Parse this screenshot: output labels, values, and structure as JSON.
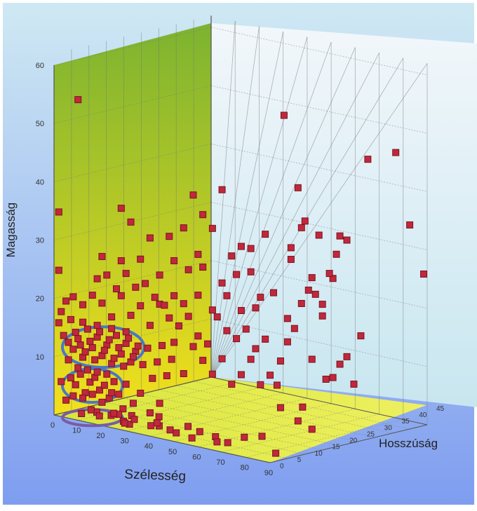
{
  "chart_data": {
    "type": "scatter",
    "projection": "3d",
    "title": "",
    "xlabel": "Szélesség",
    "ylabel": "Hosszúság",
    "zlabel": "Magasság",
    "x_ticks": [
      "0",
      "10",
      "20",
      "30",
      "40",
      "50",
      "60",
      "70",
      "80",
      "90"
    ],
    "y_ticks": [
      "0",
      "5",
      "10",
      "15",
      "20",
      "25",
      "30",
      "35",
      "40",
      "45"
    ],
    "z_ticks": [
      "10",
      "20",
      "30",
      "40",
      "50",
      "60"
    ],
    "xlim": [
      0,
      90
    ],
    "ylim": [
      0,
      45
    ],
    "zlim": [
      0,
      62
    ],
    "grid": true,
    "colors": {
      "marker": "#c0283c",
      "marker_edge": "#7a1420",
      "left_wall_top": "#7cb330",
      "left_wall_bottom": "#f3e01c",
      "floor": "#d8e63a",
      "back_wall_top": "#f2f7fb",
      "back_wall_bottom": "#c8e6f0",
      "background_top": "#cfe9f3",
      "background_bottom": "#7f9df0",
      "cluster_blue": "#4a77c6",
      "cluster_purple": "#7a5aa8"
    },
    "clusters": [
      {
        "x": [
          7,
          34
        ],
        "z": [
          10,
          17
        ],
        "color": "blue"
      },
      {
        "x": [
          7,
          25
        ],
        "z": [
          4,
          9
        ],
        "color": "blue"
      },
      {
        "x": [
          7,
          25
        ],
        "z": [
          0,
          2
        ],
        "color": "purple"
      }
    ],
    "points": [
      [
        24,
        2,
        2
      ],
      [
        30,
        1,
        1
      ],
      [
        14,
        1,
        2
      ],
      [
        10,
        1,
        1
      ],
      [
        18,
        4,
        1
      ],
      [
        28,
        3,
        2
      ],
      [
        40,
        2,
        2
      ],
      [
        35,
        6,
        2
      ],
      [
        50,
        4,
        2
      ],
      [
        56,
        1,
        1
      ],
      [
        65,
        2,
        1
      ],
      [
        72,
        5,
        2
      ],
      [
        88,
        3,
        1
      ],
      [
        44,
        3,
        1
      ],
      [
        12,
        4,
        1
      ],
      [
        20,
        6,
        2
      ],
      [
        26,
        2,
        1
      ],
      [
        32,
        1,
        2
      ],
      [
        36,
        3,
        1
      ],
      [
        22,
        2,
        2
      ],
      [
        16,
        2,
        1
      ],
      [
        48,
        2,
        1
      ],
      [
        60,
        5,
        1
      ],
      [
        28,
        1,
        1
      ],
      [
        38,
        4,
        1
      ],
      [
        52,
        6,
        1
      ],
      [
        75,
        8,
        2
      ],
      [
        68,
        3,
        1
      ],
      [
        7,
        0,
        7
      ],
      [
        9,
        0,
        6
      ],
      [
        11,
        0,
        8
      ],
      [
        13,
        0,
        5
      ],
      [
        15,
        0,
        7
      ],
      [
        17,
        0,
        8
      ],
      [
        19,
        0,
        6
      ],
      [
        21,
        0,
        7
      ],
      [
        23,
        0,
        5
      ],
      [
        25,
        0,
        8
      ],
      [
        8,
        0,
        4
      ],
      [
        12,
        0,
        4
      ],
      [
        16,
        0,
        5
      ],
      [
        20,
        0,
        4
      ],
      [
        24,
        0,
        6
      ],
      [
        10,
        0,
        9
      ],
      [
        14,
        0,
        9
      ],
      [
        18,
        0,
        9
      ],
      [
        22,
        0,
        9
      ],
      [
        27,
        0,
        6
      ],
      [
        30,
        0,
        8
      ],
      [
        33,
        0,
        5
      ],
      [
        36,
        0,
        7
      ],
      [
        40,
        0,
        4
      ],
      [
        44,
        0,
        6
      ],
      [
        3,
        0,
        6
      ],
      [
        5,
        0,
        3
      ],
      [
        8,
        0,
        12
      ],
      [
        10,
        0,
        14
      ],
      [
        12,
        0,
        11
      ],
      [
        14,
        0,
        16
      ],
      [
        16,
        0,
        13
      ],
      [
        18,
        0,
        15
      ],
      [
        20,
        0,
        12
      ],
      [
        22,
        0,
        14
      ],
      [
        24,
        0,
        11
      ],
      [
        26,
        0,
        16
      ],
      [
        28,
        0,
        13
      ],
      [
        30,
        0,
        15
      ],
      [
        32,
        0,
        12
      ],
      [
        34,
        0,
        14
      ],
      [
        9,
        0,
        15
      ],
      [
        11,
        0,
        13
      ],
      [
        13,
        0,
        12
      ],
      [
        15,
        0,
        14
      ],
      [
        17,
        0,
        11
      ],
      [
        19,
        0,
        16
      ],
      [
        21,
        0,
        13
      ],
      [
        23,
        0,
        15
      ],
      [
        25,
        0,
        12
      ],
      [
        27,
        0,
        14
      ],
      [
        29,
        0,
        11
      ],
      [
        31,
        0,
        16
      ],
      [
        33,
        0,
        13
      ],
      [
        35,
        0,
        15
      ],
      [
        12,
        0,
        17
      ],
      [
        18,
        0,
        17
      ],
      [
        24,
        0,
        17
      ],
      [
        30,
        0,
        17
      ],
      [
        6,
        0,
        10
      ],
      [
        37,
        0,
        12
      ],
      [
        39,
        0,
        15
      ],
      [
        41,
        0,
        10
      ],
      [
        43,
        0,
        13
      ],
      [
        45,
        0,
        16
      ],
      [
        47,
        0,
        11
      ],
      [
        49,
        0,
        14
      ],
      [
        3,
        0,
        18
      ],
      [
        5,
        0,
        20
      ],
      [
        7,
        0,
        17
      ],
      [
        4,
        0,
        14
      ],
      [
        2,
        0,
        16
      ],
      [
        6,
        0,
        13
      ],
      [
        8,
        0,
        21
      ],
      [
        12,
        0,
        20
      ],
      [
        16,
        0,
        22
      ],
      [
        20,
        0,
        21
      ],
      [
        24,
        0,
        19
      ],
      [
        28,
        0,
        23
      ],
      [
        32,
        0,
        20
      ],
      [
        36,
        0,
        22
      ],
      [
        40,
        0,
        19
      ],
      [
        44,
        0,
        23
      ],
      [
        48,
        0,
        21
      ],
      [
        52,
        0,
        20
      ],
      [
        56,
        0,
        22
      ],
      [
        60,
        0,
        19
      ],
      [
        64,
        0,
        18
      ],
      [
        68,
        0,
        23
      ],
      [
        72,
        0,
        21
      ],
      [
        76,
        0,
        20
      ],
      [
        80,
        0,
        22
      ],
      [
        84,
        0,
        19
      ],
      [
        88,
        0,
        21
      ],
      [
        58,
        0,
        17
      ],
      [
        62,
        0,
        15
      ],
      [
        66,
        0,
        13
      ],
      [
        70,
        0,
        16
      ],
      [
        74,
        0,
        12
      ],
      [
        78,
        0,
        14
      ],
      [
        82,
        0,
        17
      ],
      [
        86,
        0,
        13
      ],
      [
        90,
        0,
        15
      ],
      [
        54,
        0,
        12
      ],
      [
        50,
        0,
        17
      ],
      [
        18,
        0,
        25
      ],
      [
        22,
        0,
        26
      ],
      [
        26,
        0,
        24
      ],
      [
        30,
        0,
        27
      ],
      [
        34,
        0,
        25
      ],
      [
        38,
        0,
        26
      ],
      [
        42,
        0,
        24
      ],
      [
        46,
        0,
        23
      ],
      [
        50,
        0,
        25
      ],
      [
        54,
        0,
        24
      ],
      [
        60,
        0,
        26
      ],
      [
        66,
        0,
        24
      ],
      [
        72,
        0,
        27
      ],
      [
        78,
        0,
        25
      ],
      [
        84,
        0,
        26
      ],
      [
        20,
        0,
        29
      ],
      [
        28,
        0,
        29
      ],
      [
        44,
        0,
        28
      ],
      [
        56,
        0,
        30
      ],
      [
        62,
        0,
        31
      ],
      [
        70,
        0,
        29
      ],
      [
        76,
        0,
        31
      ],
      [
        82,
        0,
        32
      ],
      [
        86,
        0,
        28
      ],
      [
        2,
        0,
        25
      ],
      [
        36,
        0,
        30
      ],
      [
        50,
        0,
        31
      ],
      [
        40,
        0,
        34
      ],
      [
        48,
        0,
        35
      ],
      [
        60,
        0,
        33
      ],
      [
        74,
        0,
        34
      ],
      [
        82,
        0,
        36
      ],
      [
        54,
        0,
        37
      ],
      [
        66,
        0,
        38
      ],
      [
        78,
        0,
        36
      ],
      [
        32,
        0,
        36
      ],
      [
        62,
        0,
        40
      ],
      [
        58,
        0,
        43
      ],
      [
        70,
        0,
        45
      ],
      [
        88,
        0,
        39
      ],
      [
        28,
        0,
        38
      ],
      [
        2,
        0,
        35
      ],
      [
        10,
        0,
        55
      ],
      [
        89,
        10,
        8
      ],
      [
        90,
        8,
        6
      ],
      [
        90,
        12,
        4
      ],
      [
        90,
        16,
        12
      ],
      [
        90,
        20,
        14
      ],
      [
        90,
        22,
        15
      ],
      [
        90,
        24,
        10
      ],
      [
        90,
        26,
        18
      ],
      [
        90,
        5,
        20
      ],
      [
        90,
        7,
        22
      ],
      [
        90,
        9,
        26
      ],
      [
        90,
        11,
        28
      ],
      [
        90,
        13,
        27
      ],
      [
        90,
        15,
        25
      ],
      [
        90,
        17,
        30
      ],
      [
        90,
        19,
        33
      ],
      [
        90,
        6,
        36
      ],
      [
        90,
        10,
        40
      ],
      [
        90,
        8,
        46
      ],
      [
        90,
        4,
        59
      ],
      [
        90,
        14,
        37
      ],
      [
        90,
        20,
        36
      ],
      [
        90,
        22,
        35
      ],
      [
        90,
        28,
        48
      ],
      [
        90,
        36,
        48
      ],
      [
        90,
        40,
        35
      ],
      [
        90,
        44,
        26
      ],
      [
        90,
        3,
        17
      ],
      [
        90,
        2,
        13
      ],
      [
        90,
        1,
        29
      ],
      [
        90,
        12,
        30
      ],
      [
        90,
        18,
        29
      ],
      [
        90,
        6,
        34
      ],
      [
        90,
        9,
        39
      ],
      [
        90,
        3,
        9
      ],
      [
        90,
        5,
        24
      ],
      [
        90,
        15,
        23
      ],
      [
        90,
        12,
        16
      ],
      [
        90,
        18,
        12
      ]
    ]
  }
}
